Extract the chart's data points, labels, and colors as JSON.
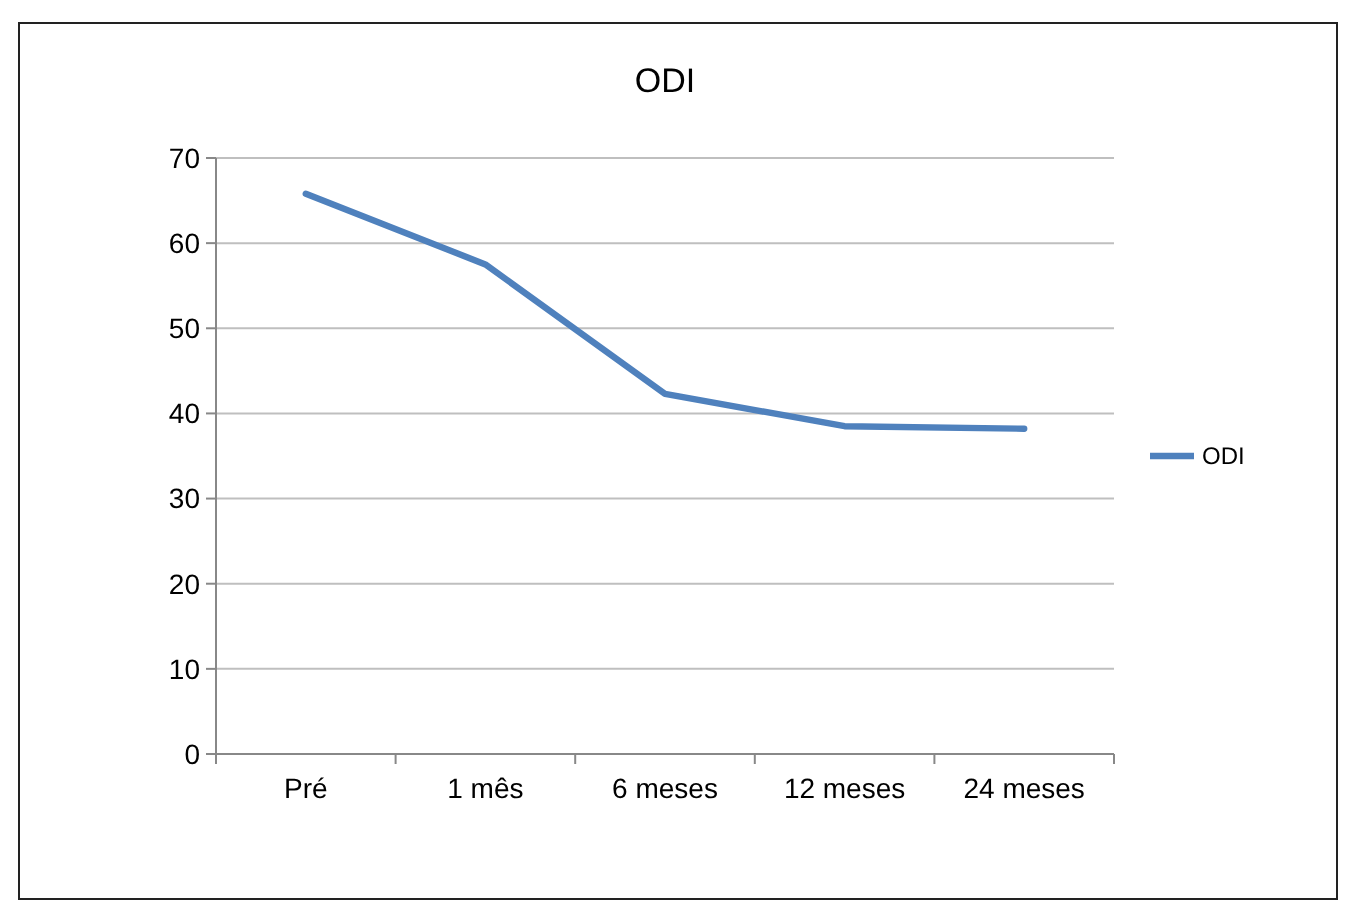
{
  "chart_data": {
    "type": "line",
    "title": "ODI",
    "categories": [
      "Pré",
      "1 mês",
      "6 meses",
      "12 meses",
      "24 meses"
    ],
    "series": [
      {
        "name": "ODI",
        "color": "#4f81bd",
        "values": [
          65.8,
          57.5,
          42.3,
          38.5,
          38.2
        ]
      }
    ],
    "ylim": [
      0,
      70
    ],
    "yticks": [
      0,
      10,
      20,
      30,
      40,
      50,
      60,
      70
    ],
    "grid": "y",
    "legend": "right",
    "marker": "none",
    "line_style": "solid"
  }
}
